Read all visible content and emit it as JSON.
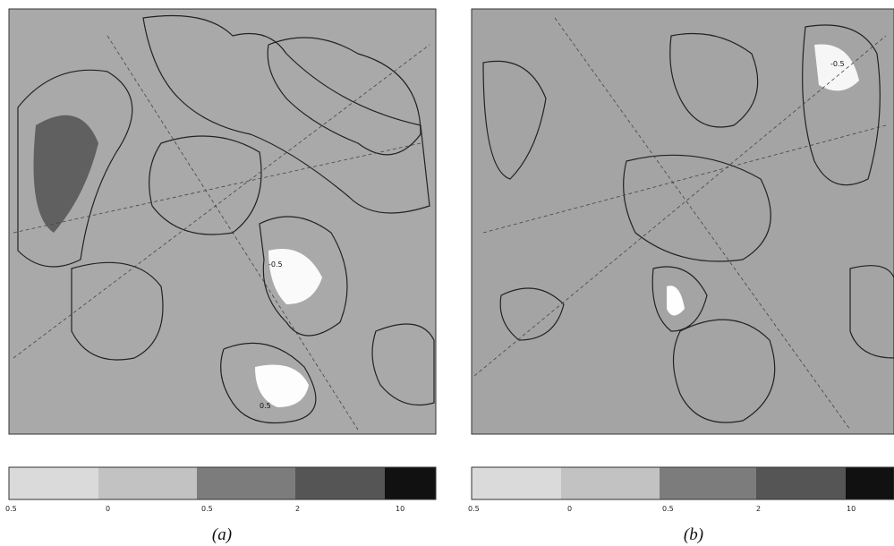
{
  "panels": [
    {
      "caption": "(a)",
      "colorbar_labels": [
        "0.5",
        "0",
        "0.5",
        "2",
        "10"
      ],
      "contour_labels": [
        "-0.5",
        "0.5"
      ]
    },
    {
      "caption": "(b)",
      "colorbar_labels": [
        "0.5",
        "0",
        "0.5",
        "2",
        "10"
      ],
      "contour_labels": [
        "-0.5"
      ]
    }
  ]
}
